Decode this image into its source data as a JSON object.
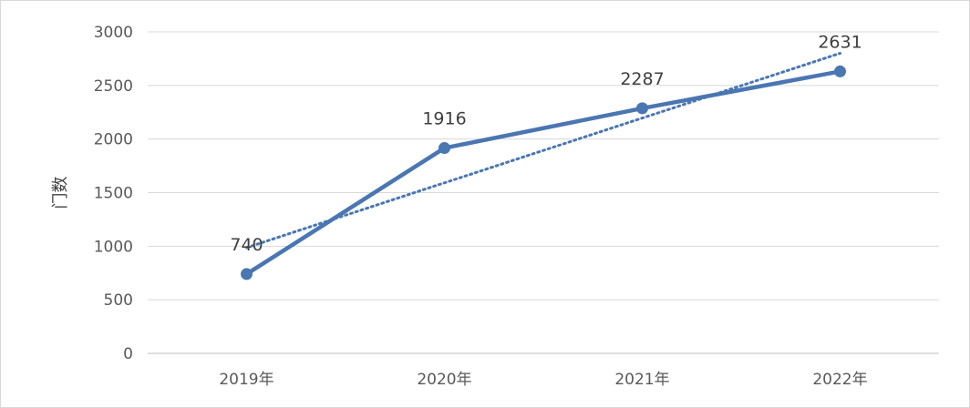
{
  "chart_data": {
    "type": "line",
    "categories": [
      "2019年",
      "2020年",
      "2021年",
      "2022年"
    ],
    "series": [
      {
        "values": [
          740,
          1916,
          2287,
          2631
        ]
      }
    ],
    "trendline": {
      "style": "dotted",
      "type": "linear"
    },
    "ylabel": "门数",
    "ylim": [
      0,
      3000
    ],
    "yticks": [
      "0",
      "500",
      "1000",
      "1500",
      "2000",
      "2500",
      "3000"
    ],
    "data_labels": [
      "740",
      "1916",
      "2287",
      "2631"
    ],
    "grid": true,
    "legend": "none",
    "colors": {
      "series": "#4a76b2",
      "grid": "#d9d9d9",
      "axis": "#bfbfbf"
    }
  }
}
